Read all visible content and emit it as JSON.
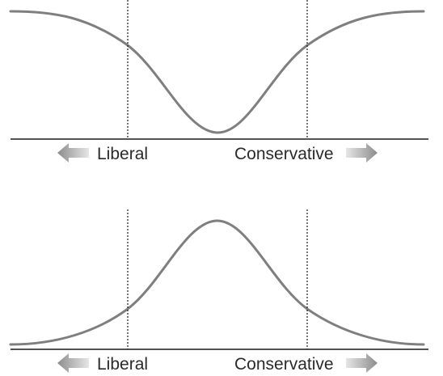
{
  "panels": [
    {
      "id": "polarized",
      "shape": "inverted-bell",
      "left_label": "Liberal",
      "right_label": "Conservative"
    },
    {
      "id": "centrist",
      "shape": "bell",
      "left_label": "Liberal",
      "right_label": "Conservative"
    }
  ],
  "colors": {
    "curve": "#7f7f7f",
    "line": "#1a1a1a",
    "text": "#2a2a2a",
    "arrow_dark": "#8c8c8c",
    "arrow_light": "#e6e6e6"
  }
}
